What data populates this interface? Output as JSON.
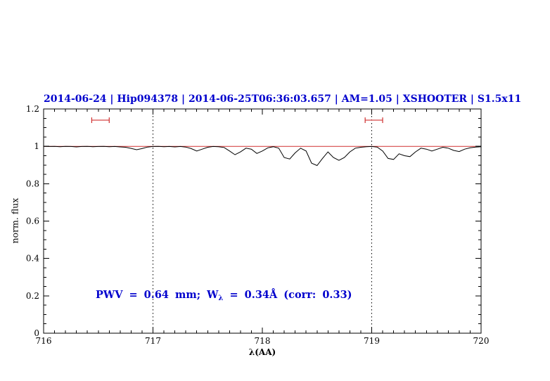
{
  "title": "2014-06-24 | Hip094378 | 2014-06-25T06:36:03.657 | AM=1.05 | XSHOOTER | S1.5x11",
  "annotation": {
    "part1": "PWV = 0.64 mm; W",
    "sub": "λ",
    "part2": " = 0.34Å (corr: 0.33)"
  },
  "colors": {
    "title_text": "#0000cd",
    "annotation_text": "#0000cd",
    "spectrum": "#000000",
    "continuum": "#d03030",
    "range_marker": "#d03030",
    "axis": "#000000"
  },
  "chart_data": {
    "type": "line",
    "title": "2014-06-24 | Hip094378 | 2014-06-25T06:36:03.657 | AM=1.05 | XSHOOTER | S1.5x11",
    "xlabel": "λ(AA)",
    "ylabel": "norm. flux",
    "xlim": [
      716,
      720
    ],
    "ylim": [
      0,
      1.2
    ],
    "grid": false,
    "legend": "none",
    "x_ticks": [
      716,
      717,
      718,
      719,
      720
    ],
    "x_tick_labels": [
      "716",
      "717",
      "718",
      "719",
      "720"
    ],
    "y_ticks": [
      0,
      0.2,
      0.4,
      0.6,
      0.8,
      1,
      1.2
    ],
    "y_tick_labels": [
      "0",
      "0.2",
      "0.4",
      "0.6",
      "0.8",
      "1",
      "1.2"
    ],
    "x_minor_step": 0.1,
    "y_minor_step": 0.05,
    "vlines": [
      717,
      719
    ],
    "marker_color": "#d03030",
    "range_markers": [
      {
        "x1": 716.44,
        "x2": 716.6,
        "y": 1.14
      },
      {
        "x1": 718.94,
        "x2": 719.1,
        "y": 1.14
      }
    ],
    "series": [
      {
        "name": "continuum-model",
        "color": "#d03030",
        "points": [
          [
            716.0,
            1.0
          ],
          [
            720.0,
            1.0
          ]
        ]
      },
      {
        "name": "observed-spectrum",
        "color": "#000000",
        "points": [
          [
            716.0,
            1.0
          ],
          [
            716.05,
            0.999
          ],
          [
            716.1,
            1.0
          ],
          [
            716.15,
            0.998
          ],
          [
            716.2,
            1.0
          ],
          [
            716.25,
            0.999
          ],
          [
            716.3,
            0.997
          ],
          [
            716.35,
            0.999
          ],
          [
            716.4,
            1.0
          ],
          [
            716.45,
            0.998
          ],
          [
            716.5,
            0.999
          ],
          [
            716.55,
            1.0
          ],
          [
            716.6,
            0.998
          ],
          [
            716.65,
            0.999
          ],
          [
            716.7,
            0.997
          ],
          [
            716.75,
            0.995
          ],
          [
            716.8,
            0.989
          ],
          [
            716.85,
            0.982
          ],
          [
            716.9,
            0.988
          ],
          [
            716.95,
            0.996
          ],
          [
            717.0,
            0.999
          ],
          [
            717.05,
            1.0
          ],
          [
            717.1,
            0.998
          ],
          [
            717.15,
            0.999
          ],
          [
            717.2,
            0.997
          ],
          [
            717.25,
            0.999
          ],
          [
            717.3,
            0.996
          ],
          [
            717.35,
            0.988
          ],
          [
            717.4,
            0.975
          ],
          [
            717.45,
            0.985
          ],
          [
            717.5,
            0.995
          ],
          [
            717.55,
            0.999
          ],
          [
            717.6,
            0.998
          ],
          [
            717.65,
            0.994
          ],
          [
            717.7,
            0.975
          ],
          [
            717.75,
            0.955
          ],
          [
            717.8,
            0.97
          ],
          [
            717.85,
            0.99
          ],
          [
            717.9,
            0.985
          ],
          [
            717.95,
            0.962
          ],
          [
            718.0,
            0.975
          ],
          [
            718.05,
            0.992
          ],
          [
            718.1,
            0.998
          ],
          [
            718.15,
            0.99
          ],
          [
            718.2,
            0.94
          ],
          [
            718.25,
            0.932
          ],
          [
            718.3,
            0.965
          ],
          [
            718.35,
            0.99
          ],
          [
            718.4,
            0.975
          ],
          [
            718.45,
            0.91
          ],
          [
            718.5,
            0.897
          ],
          [
            718.55,
            0.935
          ],
          [
            718.6,
            0.97
          ],
          [
            718.65,
            0.94
          ],
          [
            718.7,
            0.925
          ],
          [
            718.75,
            0.94
          ],
          [
            718.8,
            0.97
          ],
          [
            718.85,
            0.99
          ],
          [
            718.9,
            0.995
          ],
          [
            718.95,
            0.998
          ],
          [
            719.0,
            0.999
          ],
          [
            719.05,
            0.996
          ],
          [
            719.1,
            0.975
          ],
          [
            719.15,
            0.935
          ],
          [
            719.2,
            0.93
          ],
          [
            719.25,
            0.96
          ],
          [
            719.3,
            0.95
          ],
          [
            719.35,
            0.945
          ],
          [
            719.4,
            0.97
          ],
          [
            719.45,
            0.99
          ],
          [
            719.5,
            0.985
          ],
          [
            719.55,
            0.975
          ],
          [
            719.6,
            0.985
          ],
          [
            719.65,
            0.995
          ],
          [
            719.7,
            0.99
          ],
          [
            719.75,
            0.978
          ],
          [
            719.8,
            0.972
          ],
          [
            719.85,
            0.985
          ],
          [
            719.9,
            0.992
          ],
          [
            719.95,
            0.996
          ],
          [
            720.0,
            0.998
          ]
        ]
      }
    ]
  }
}
